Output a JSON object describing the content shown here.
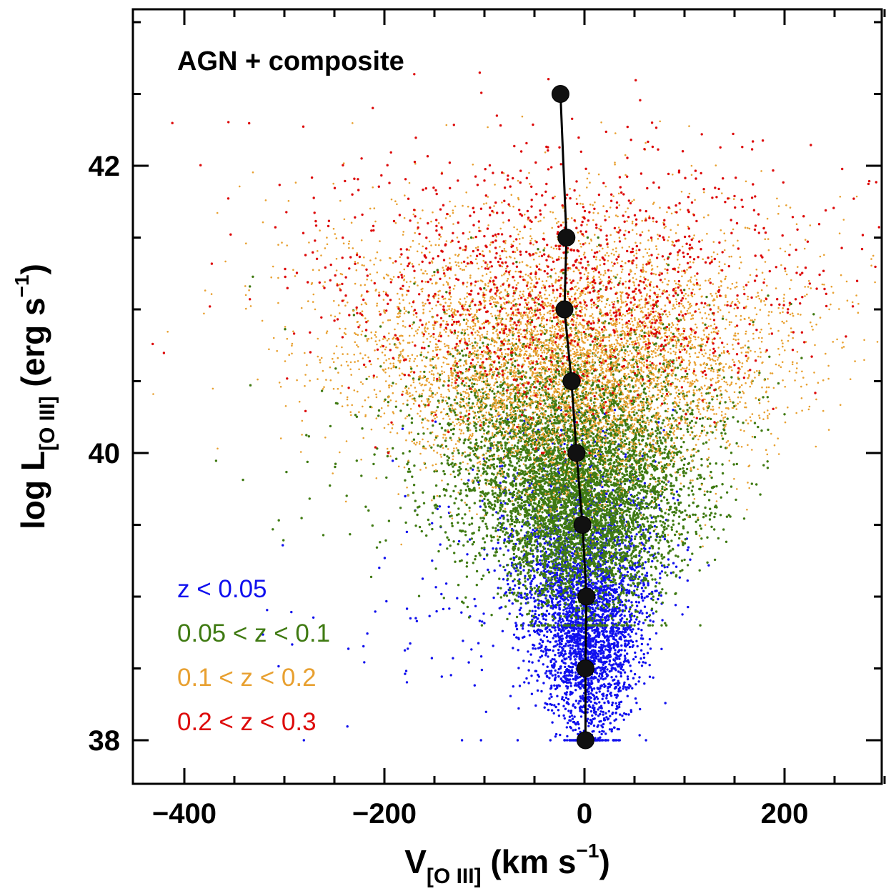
{
  "chart_data": {
    "type": "scatter",
    "title": "AGN + composite",
    "xlabel": {
      "main": "V",
      "sub": "[O III]",
      "units": " (km s",
      "sup": "−1",
      "close": ")"
    },
    "ylabel": {
      "main": "log L",
      "sub": "[O III]",
      "units": " (erg s",
      "sup": "−1",
      "close": ")"
    },
    "xlim": [
      -450,
      300
    ],
    "ylim": [
      37.7,
      43.0
    ],
    "x_ticks": [
      -400,
      -200,
      0,
      200
    ],
    "x_tick_labels": [
      "−400",
      "−200",
      "0",
      "200"
    ],
    "y_ticks": [
      38,
      40,
      42
    ],
    "y_tick_labels": [
      "38",
      "40",
      "42"
    ],
    "legend": {
      "placement": "bottom-left",
      "entries": [
        {
          "label": "z < 0.05",
          "color": "#1010ee"
        },
        {
          "label": "0.05 < z < 0.1",
          "color": "#3f7a12"
        },
        {
          "label": "0.1 < z < 0.2",
          "color": "#e8a030"
        },
        {
          "label": "0.2 < z < 0.3",
          "color": "#dd0a0a"
        }
      ]
    },
    "series": [
      {
        "name": "z < 0.05",
        "color": "#1010ee",
        "count": 3500,
        "y_range": [
          38.0,
          40.3
        ],
        "y_center": 38.85,
        "x_sigma": 28
      },
      {
        "name": "0.05 < z < 0.1",
        "color": "#3f7a12",
        "count": 6500,
        "y_range": [
          38.8,
          41.5
        ],
        "y_center": 39.75,
        "x_sigma": 36
      },
      {
        "name": "0.1 < z < 0.2",
        "color": "#e8a030",
        "count": 6000,
        "y_range": [
          39.3,
          42.8
        ],
        "y_center": 40.6,
        "x_sigma": 50
      },
      {
        "name": "0.2 < z < 0.3",
        "color": "#dd0a0a",
        "count": 1300,
        "y_range": [
          40.0,
          42.9
        ],
        "y_center": 41.1,
        "x_sigma": 55
      }
    ],
    "binned_median": {
      "color": "#000000",
      "x": [
        -24,
        -18,
        -20,
        -13,
        -8,
        -2,
        2,
        1,
        1
      ],
      "y": [
        42.5,
        41.5,
        41.0,
        40.5,
        40.0,
        39.5,
        39.0,
        38.5,
        38.0
      ]
    }
  }
}
